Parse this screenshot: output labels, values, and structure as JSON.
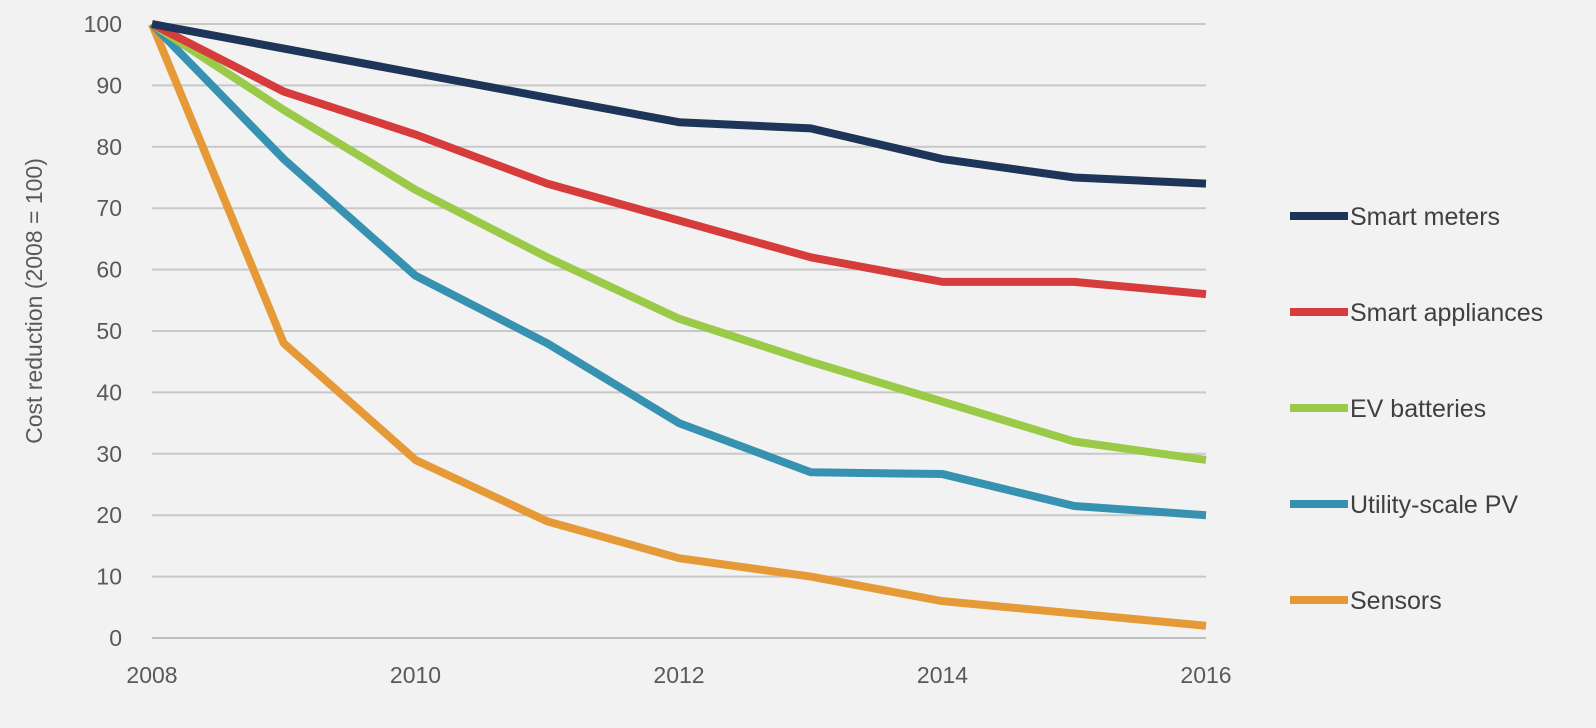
{
  "chart_data": {
    "type": "line",
    "title": "",
    "xlabel": "",
    "ylabel": "Cost reduction (2008 = 100)",
    "x": [
      2008,
      2009,
      2010,
      2011,
      2012,
      2013,
      2014,
      2015,
      2016
    ],
    "xticks": [
      2008,
      2010,
      2012,
      2014,
      2016
    ],
    "xlim": [
      2008,
      2016
    ],
    "ylim": [
      0,
      100
    ],
    "yticks": [
      0,
      10,
      20,
      30,
      40,
      50,
      60,
      70,
      80,
      90,
      100
    ],
    "grid": "horizontal",
    "legend_position": "right",
    "series": [
      {
        "name": "Smart meters",
        "color": "#1c3558",
        "values": [
          100,
          96,
          92,
          88,
          84,
          83,
          78,
          75,
          74
        ]
      },
      {
        "name": "Smart appliances",
        "color": "#d63c3c",
        "values": [
          100,
          89,
          82,
          74,
          68,
          62,
          58,
          58,
          56
        ]
      },
      {
        "name": "EV batteries",
        "color": "#9bc948",
        "values": [
          100,
          86,
          73,
          62,
          52,
          45,
          38.5,
          32,
          29
        ]
      },
      {
        "name": "Utility-scale PV",
        "color": "#3791b0",
        "values": [
          100,
          78,
          59,
          48,
          35,
          27,
          26.7,
          21.5,
          20
        ]
      },
      {
        "name": "Sensors",
        "color": "#e59a37",
        "values": [
          100,
          48,
          29,
          19,
          13,
          10,
          6,
          4,
          2
        ]
      }
    ]
  }
}
